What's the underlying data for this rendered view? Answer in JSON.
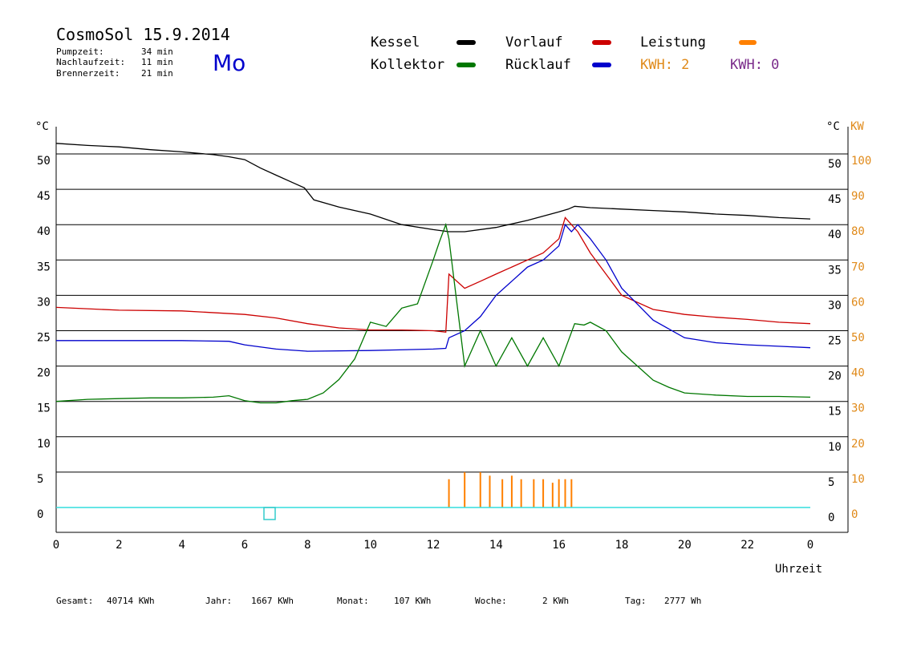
{
  "header": {
    "title": "CosmoSol 15.9.2014",
    "day": "Mo",
    "day_color": "#0000cc",
    "stats": [
      {
        "label": "Pumpzeit:",
        "value": "34 min"
      },
      {
        "label": "Nachlaufzeit:",
        "value": "11 min"
      },
      {
        "label": "Brennerzeit:",
        "value": "21 min"
      }
    ]
  },
  "legend": [
    {
      "label": "Kessel",
      "color": "#000000"
    },
    {
      "label": "Vorlauf",
      "color": "#cc0000"
    },
    {
      "label": "Leistung",
      "color": "#ff8000"
    },
    {
      "label": "Kollektor",
      "color": "#007700"
    },
    {
      "label": "Rücklauf",
      "color": "#0000cc"
    }
  ],
  "kwh": [
    {
      "text": "KWH: 2",
      "color": "#e08a1a"
    },
    {
      "text": "KWH: 0",
      "color": "#7a2a8a"
    }
  ],
  "footer": [
    {
      "label": "Gesamt:",
      "value": "40714 KWh"
    },
    {
      "label": "Jahr:",
      "value": "1667 KWh"
    },
    {
      "label": "Monat:",
      "value": "107 KWh"
    },
    {
      "label": "Woche:",
      "value": "2 KWh"
    },
    {
      "label": "Tag:",
      "value": "2777 Wh"
    }
  ],
  "chart_data": {
    "type": "line",
    "xlabel": "Uhrzeit",
    "xlim": [
      0,
      24
    ],
    "x_ticks": [
      "0",
      "2",
      "4",
      "6",
      "8",
      "10",
      "12",
      "14",
      "16",
      "18",
      "20",
      "22",
      "0"
    ],
    "y_left_label": "°C",
    "y_right_label": "°C",
    "y_right2_label": "KW",
    "ylim": [
      0,
      50
    ],
    "y_ticks": [
      0,
      5,
      10,
      15,
      20,
      25,
      30,
      35,
      40,
      45,
      50
    ],
    "y2_ticks": [
      0,
      10,
      20,
      30,
      40,
      50,
      60,
      70,
      80,
      90,
      100
    ],
    "grid": true,
    "series": [
      {
        "name": "Kessel",
        "color": "#000000",
        "x": [
          0,
          1,
          2,
          3,
          4,
          5,
          5.5,
          6,
          6.5,
          7,
          7.5,
          7.9,
          8.2,
          9,
          10,
          11,
          12,
          12.5,
          13,
          14,
          15,
          16,
          16.3,
          16.5,
          17,
          18,
          19,
          20,
          21,
          22,
          23,
          24
        ],
        "y": [
          51.5,
          51.2,
          51.0,
          50.6,
          50.3,
          49.9,
          49.6,
          49.2,
          48.0,
          47.0,
          46.0,
          45.2,
          43.5,
          42.5,
          41.5,
          40.0,
          39.3,
          39.0,
          39.0,
          39.6,
          40.6,
          41.8,
          42.2,
          42.6,
          42.4,
          42.2,
          42.0,
          41.8,
          41.5,
          41.3,
          41.0,
          40.8
        ]
      },
      {
        "name": "Vorlauf",
        "color": "#cc0000",
        "x": [
          0,
          2,
          4,
          6,
          7,
          8,
          9,
          10,
          11,
          12,
          12.4,
          12.5,
          13,
          13.5,
          14,
          14.5,
          15,
          15.5,
          16,
          16.2,
          16.4,
          16.6,
          17,
          18,
          19,
          20,
          21,
          22,
          23,
          24
        ],
        "y": [
          28.3,
          27.9,
          27.8,
          27.3,
          26.8,
          26.0,
          25.4,
          25.1,
          25.1,
          25.0,
          24.8,
          33,
          31,
          32,
          33,
          34,
          35,
          36,
          38,
          41,
          40,
          39,
          36,
          30,
          28,
          27.3,
          26.9,
          26.6,
          26.2,
          26.0
        ]
      },
      {
        "name": "Rücklauf",
        "color": "#0000cc",
        "x": [
          0,
          2,
          4,
          5.5,
          6,
          7,
          8,
          10,
          12,
          12.4,
          12.5,
          13,
          13.5,
          14,
          14.5,
          15,
          15.5,
          16,
          16.2,
          16.4,
          16.6,
          17,
          17.5,
          18,
          19,
          20,
          21,
          22,
          23,
          24
        ],
        "y": [
          23.6,
          23.6,
          23.6,
          23.5,
          23.0,
          22.4,
          22.1,
          22.2,
          22.4,
          22.5,
          24,
          25,
          27,
          30,
          32,
          34,
          35,
          37,
          40,
          39,
          40,
          38,
          35,
          31,
          26.5,
          24.0,
          23.3,
          23.0,
          22.8,
          22.6
        ]
      },
      {
        "name": "Kollektor",
        "color": "#007700",
        "x": [
          0,
          1,
          2,
          3,
          4,
          5,
          5.5,
          6,
          6.5,
          7,
          7.5,
          8,
          8.5,
          9,
          9.5,
          10,
          10.5,
          11,
          11.5,
          12,
          12.2,
          12.4,
          12.5,
          13,
          13.5,
          14,
          14.5,
          15,
          15.5,
          16,
          16.5,
          16.8,
          17,
          17.5,
          18,
          18.5,
          19,
          19.5,
          20,
          21,
          22,
          23,
          24
        ],
        "y": [
          15.0,
          15.3,
          15.4,
          15.5,
          15.5,
          15.6,
          15.8,
          15.1,
          14.8,
          14.8,
          15.1,
          15.3,
          16.2,
          18.1,
          21.0,
          26.2,
          25.6,
          28.2,
          28.8,
          35.0,
          37.6,
          40.0,
          38.0,
          20,
          25,
          20,
          24,
          20,
          24,
          20,
          26,
          25.8,
          26.2,
          25.0,
          22.0,
          20.0,
          18.0,
          17.0,
          16.2,
          15.9,
          15.7,
          15.7,
          15.6
        ]
      }
    ],
    "bars": {
      "name": "Leistung",
      "color": "#ff8000",
      "x": [
        12.5,
        13.0,
        13.5,
        13.8,
        14.2,
        14.5,
        14.8,
        15.2,
        15.5,
        15.8,
        16.0,
        16.2,
        16.4
      ],
      "y": [
        8,
        10,
        10,
        9,
        8,
        9,
        8,
        8,
        8,
        7,
        8,
        8,
        8
      ]
    }
  }
}
